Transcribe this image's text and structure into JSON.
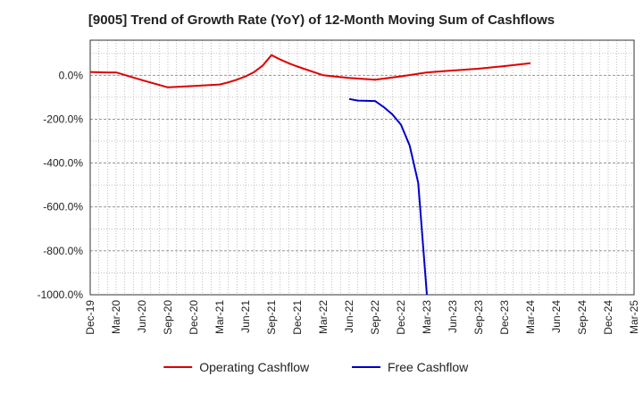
{
  "chart_data": {
    "type": "line",
    "title": "[9005]  Trend of Growth Rate (YoY) of 12-Month Moving Sum of Cashflows",
    "xlabel": "",
    "ylabel": "",
    "categories": [
      "Dec-19",
      "Mar-20",
      "Jun-20",
      "Sep-20",
      "Dec-20",
      "Mar-21",
      "Jun-21",
      "Sep-21",
      "Dec-21",
      "Mar-22",
      "Jun-22",
      "Sep-22",
      "Dec-22",
      "Mar-23",
      "Jun-23",
      "Sep-23",
      "Dec-23",
      "Mar-24",
      "Jun-24",
      "Sep-24",
      "Dec-24",
      "Mar-25"
    ],
    "x_tick_labels": [
      "Dec-19",
      "Mar-20",
      "Jun-20",
      "Sep-20",
      "Dec-20",
      "Mar-21",
      "Jun-21",
      "Sep-21",
      "Dec-21",
      "Mar-22",
      "Jun-22",
      "Sep-22",
      "Dec-22",
      "Mar-23",
      "Jun-23",
      "Sep-23",
      "Dec-23",
      "Mar-24",
      "Jun-24",
      "Sep-24",
      "Dec-24",
      "Mar-25"
    ],
    "y_ticks": [
      0,
      -200,
      -400,
      -600,
      -800,
      -1000
    ],
    "y_tick_labels": [
      "0.0%",
      "-200.0%",
      "-400.0%",
      "-600.0%",
      "-800.0%",
      "-1000.0%"
    ],
    "ylim": [
      -1000,
      160
    ],
    "grid": true,
    "legend_position": "bottom",
    "series": [
      {
        "name": "Operating Cashflow",
        "color": "#e00000",
        "points": [
          [
            "Dec-19",
            15
          ],
          [
            "Jan-20",
            14
          ],
          [
            "Feb-20",
            13
          ],
          [
            "Mar-20",
            13
          ],
          [
            "Jun-20",
            -22
          ],
          [
            "Sep-20",
            -55
          ],
          [
            "Dec-20",
            -49
          ],
          [
            "Mar-21",
            -42
          ],
          [
            "Apr-21",
            -32
          ],
          [
            "May-21",
            -20
          ],
          [
            "Jun-21",
            -5
          ],
          [
            "Jul-21",
            15
          ],
          [
            "Aug-21",
            45
          ],
          [
            "Sep-21",
            92
          ],
          [
            "Oct-21",
            72
          ],
          [
            "Nov-21",
            55
          ],
          [
            "Dec-21",
            40
          ],
          [
            "Mar-22",
            0
          ],
          [
            "Jun-22",
            -12
          ],
          [
            "Sep-22",
            -20
          ],
          [
            "Dec-22",
            -5
          ],
          [
            "Mar-23",
            13
          ],
          [
            "Jun-23",
            22
          ],
          [
            "Sep-23",
            30
          ],
          [
            "Dec-23",
            42
          ],
          [
            "Mar-24",
            55
          ]
        ]
      },
      {
        "name": "Free Cashflow",
        "color": "#0000cc",
        "points": [
          [
            "Jun-22",
            -108
          ],
          [
            "Jul-22",
            -115
          ],
          [
            "Sep-22",
            -117
          ],
          [
            "Oct-22",
            -145
          ],
          [
            "Nov-22",
            -178
          ],
          [
            "Dec-22",
            -225
          ],
          [
            "Jan-23",
            -320
          ],
          [
            "Feb-23",
            -490
          ],
          [
            "Mar-23",
            -1000
          ]
        ]
      }
    ]
  }
}
